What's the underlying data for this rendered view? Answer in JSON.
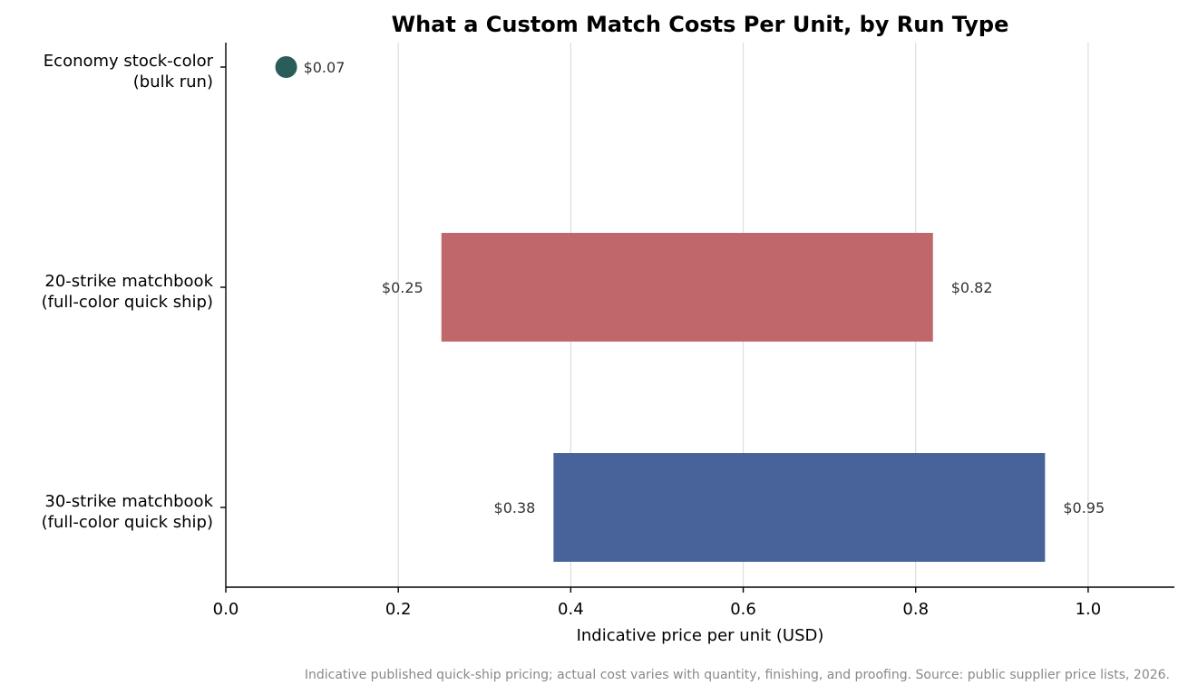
{
  "chart_data": {
    "type": "bar",
    "orientation": "horizontal-range",
    "title": "What a Custom Match Costs Per Unit, by Run Type",
    "xlabel": "Indicative price per unit (USD)",
    "ylabel": "",
    "xlim": [
      0,
      1.1
    ],
    "xticks": [
      0.0,
      0.2,
      0.4,
      0.6,
      0.8,
      1.0
    ],
    "xtick_labels": [
      "0.0",
      "0.2",
      "0.4",
      "0.6",
      "0.8",
      "1.0"
    ],
    "grid": "vertical",
    "categories": [
      {
        "line1": "Economy stock-color",
        "line2": "(bulk run)"
      },
      {
        "line1": "20-strike matchbook",
        "line2": "(full-color quick ship)"
      },
      {
        "line1": "30-strike matchbook",
        "line2": "(full-color quick ship)"
      }
    ],
    "ranges": [
      {
        "low": 0.07,
        "high": 0.07,
        "marker": "point",
        "color": "#2a5c5a",
        "low_label": "",
        "high_label": "$0.07"
      },
      {
        "low": 0.25,
        "high": 0.82,
        "marker": "bar",
        "color": "#c0676b",
        "low_label": "$0.25",
        "high_label": "$0.82"
      },
      {
        "low": 0.38,
        "high": 0.95,
        "marker": "bar",
        "color": "#48639a",
        "low_label": "$0.38",
        "high_label": "$0.95"
      }
    ],
    "footnote": "Indicative published quick-ship pricing; actual cost varies with quantity, finishing, and proofing. Source: public supplier price lists, 2026."
  }
}
